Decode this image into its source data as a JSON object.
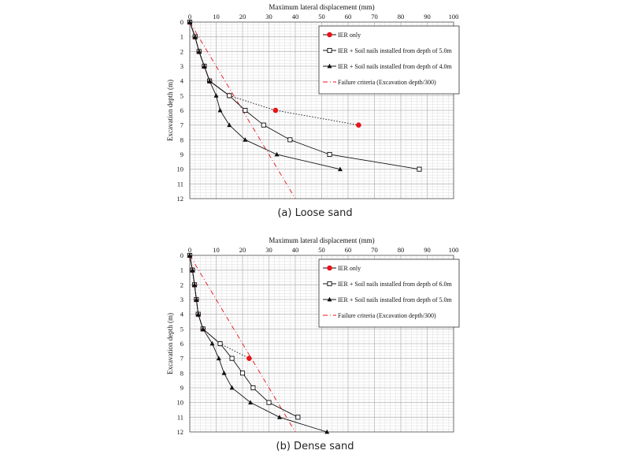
{
  "chart_data": [
    {
      "type": "line",
      "caption": "(a)  Loose sand",
      "xlabel": "Maximum lateral displacement (mm)",
      "ylabel": "Excavation depth (m)",
      "xlim": [
        0,
        100
      ],
      "ylim": [
        0,
        12
      ],
      "x_ticks": [
        "0",
        "10",
        "20",
        "30",
        "40",
        "50",
        "60",
        "70",
        "80",
        "90",
        "100"
      ],
      "y_ticks": [
        "0",
        "1",
        "2",
        "3",
        "4",
        "5",
        "6",
        "7",
        "8",
        "9",
        "10",
        "11",
        "12"
      ],
      "y_inverted": true,
      "x_axis_position": "top",
      "grid": true,
      "legend_position": "top-right",
      "series": [
        {
          "name": "IER only",
          "color": "#e8141b",
          "marker": "circle-filled",
          "line": "solid-then-dotted",
          "points": [
            [
              0,
              0
            ],
            [
              2,
              1
            ],
            [
              3.5,
              2
            ],
            [
              5.5,
              3
            ],
            [
              7.5,
              4
            ],
            [
              15,
              5
            ],
            [
              32.5,
              6
            ],
            [
              64,
              7
            ]
          ]
        },
        {
          "name": "IER + Soil nails installed from depth of 5.0m",
          "color": "#111111",
          "marker": "square-open",
          "line": "solid",
          "points": [
            [
              0,
              0
            ],
            [
              2,
              1
            ],
            [
              3.5,
              2
            ],
            [
              5.5,
              3
            ],
            [
              7.5,
              4
            ],
            [
              15,
              5
            ],
            [
              21,
              6
            ],
            [
              28,
              7
            ],
            [
              38,
              8
            ],
            [
              53,
              9
            ],
            [
              87,
              10
            ]
          ]
        },
        {
          "name": "IER + Soil nails installed from depth of 4.0m",
          "color": "#111111",
          "marker": "triangle-filled",
          "line": "solid",
          "points": [
            [
              0,
              0
            ],
            [
              2,
              1
            ],
            [
              3.5,
              2
            ],
            [
              5.5,
              3
            ],
            [
              7.5,
              4
            ],
            [
              10,
              5
            ],
            [
              11.5,
              6
            ],
            [
              15,
              7
            ],
            [
              21,
              8
            ],
            [
              33,
              9
            ],
            [
              57,
              10
            ]
          ]
        },
        {
          "name": "Failure criteria (Excavation depth/300)",
          "color": "#e8141b",
          "marker": "none",
          "line": "dashed",
          "points": [
            [
              0,
              0
            ],
            [
              40,
              12
            ]
          ]
        }
      ]
    },
    {
      "type": "line",
      "caption": "(b)  Dense sand",
      "xlabel": "Maximum lateral displacement (mm)",
      "ylabel": "Excavation depth (m)",
      "xlim": [
        0,
        100
      ],
      "ylim": [
        0,
        12
      ],
      "x_ticks": [
        "0",
        "10",
        "20",
        "30",
        "40",
        "50",
        "60",
        "70",
        "80",
        "90",
        "100"
      ],
      "y_ticks": [
        "0",
        "1",
        "2",
        "3",
        "4",
        "5",
        "6",
        "7",
        "8",
        "9",
        "10",
        "11",
        "12"
      ],
      "y_inverted": true,
      "x_axis_position": "top",
      "grid": true,
      "legend_position": "top-right",
      "series": [
        {
          "name": "IER only",
          "color": "#e8141b",
          "marker": "circle-filled",
          "line": "solid-then-dotted",
          "points": [
            [
              0,
              0
            ],
            [
              1,
              1
            ],
            [
              1.8,
              2
            ],
            [
              2.5,
              3
            ],
            [
              3.2,
              4
            ],
            [
              5,
              5
            ],
            [
              11.5,
              6
            ],
            [
              22.5,
              7
            ]
          ]
        },
        {
          "name": "IER + Soil nails installed from depth of 6.0m",
          "color": "#111111",
          "marker": "square-open",
          "line": "solid",
          "points": [
            [
              0,
              0
            ],
            [
              1,
              1
            ],
            [
              1.8,
              2
            ],
            [
              2.5,
              3
            ],
            [
              3.2,
              4
            ],
            [
              5,
              5
            ],
            [
              11.5,
              6
            ],
            [
              16,
              7
            ],
            [
              20,
              8
            ],
            [
              24,
              9
            ],
            [
              30,
              10
            ],
            [
              41,
              11
            ]
          ]
        },
        {
          "name": "IER + Soil nails installed from depth of 5.0m",
          "color": "#111111",
          "marker": "triangle-filled",
          "line": "solid",
          "points": [
            [
              0,
              0
            ],
            [
              1,
              1
            ],
            [
              1.8,
              2
            ],
            [
              2.5,
              3
            ],
            [
              3.2,
              4
            ],
            [
              5,
              5
            ],
            [
              8.5,
              6
            ],
            [
              11,
              7
            ],
            [
              13,
              8
            ],
            [
              16,
              9
            ],
            [
              23,
              10
            ],
            [
              34,
              11
            ],
            [
              52,
              12
            ]
          ]
        },
        {
          "name": "Failure criteria (Excavation depth/300)",
          "color": "#e8141b",
          "marker": "none",
          "line": "dashed",
          "points": [
            [
              0,
              0
            ],
            [
              40,
              12
            ]
          ]
        }
      ]
    }
  ]
}
